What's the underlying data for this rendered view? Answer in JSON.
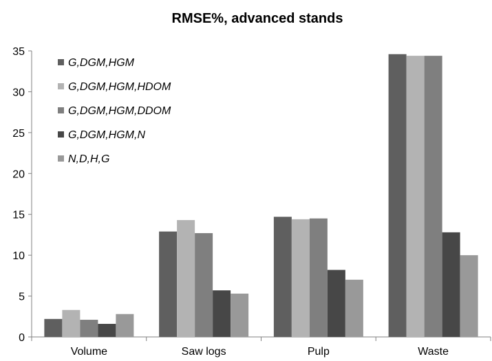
{
  "chart_data": {
    "type": "bar",
    "title": "RMSE%, advanced stands",
    "categories": [
      "Volume",
      "Saw logs",
      "Pulp",
      "Waste"
    ],
    "ylim": [
      0,
      35
    ],
    "yticks": [
      0,
      5,
      10,
      15,
      20,
      25,
      30,
      35
    ],
    "grid": false,
    "legend_position": "top-left",
    "series": [
      {
        "name": "G,DGM,HGM",
        "color": "#5f5f5f",
        "values": [
          2.2,
          12.9,
          14.7,
          34.6
        ]
      },
      {
        "name": "G,DGM,HGM,HDOM",
        "color": "#b3b3b3",
        "values": [
          3.3,
          14.3,
          14.4,
          34.4
        ]
      },
      {
        "name": "G,DGM,HGM,DDOM",
        "color": "#7f7f7f",
        "values": [
          2.1,
          12.7,
          14.5,
          34.4
        ]
      },
      {
        "name": "G,DGM,HGM,N",
        "color": "#474747",
        "values": [
          1.6,
          5.7,
          8.2,
          12.8
        ]
      },
      {
        "name": "N,D,H,G",
        "color": "#999999",
        "values": [
          2.8,
          5.3,
          7.0,
          10.0
        ]
      }
    ]
  }
}
